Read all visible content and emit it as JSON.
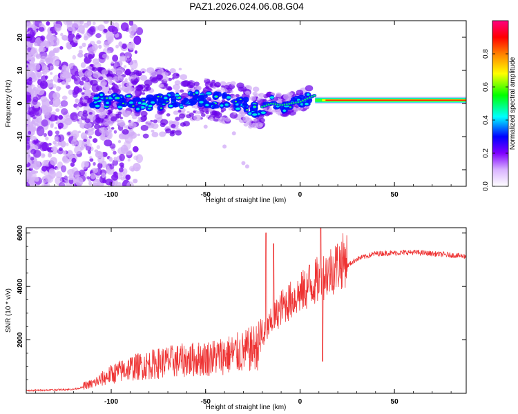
{
  "chart_data": [
    {
      "type": "heatmap",
      "title": "PAZ1.2026.024.06.08.G04",
      "xlabel": "Height of straight line (km)",
      "ylabel": "Frequency (Hz)",
      "xlim": [
        -145,
        88
      ],
      "ylim": [
        -25,
        25
      ],
      "xticks": [
        -100,
        -50,
        0,
        50
      ],
      "yticks": [
        20,
        10,
        0,
        -10,
        -20
      ],
      "colorbar": {
        "label": "Normalized spectral amplitude",
        "range": [
          0,
          1
        ],
        "ticks": [
          "0.0",
          "0.2",
          "0.4",
          "0.6",
          "0.8"
        ],
        "colors": [
          "#ffffff",
          "#a000ff",
          "#0000ff",
          "#00ffff",
          "#00ff00",
          "#ffff00",
          "#ff8000",
          "#ff0000",
          "#ff0080"
        ]
      },
      "ridge": [
        {
          "x": -110,
          "f": 1.0
        },
        {
          "x": -100,
          "f": 1.0
        },
        {
          "x": -90,
          "f": 0.5
        },
        {
          "x": -80,
          "f": 0.0
        },
        {
          "x": -70,
          "f": 0.5
        },
        {
          "x": -60,
          "f": 1.0
        },
        {
          "x": -50,
          "f": 1.5
        },
        {
          "x": -40,
          "f": 0.5
        },
        {
          "x": -30,
          "f": 0.0
        },
        {
          "x": -25,
          "f": -1.5
        },
        {
          "x": -20,
          "f": -1.0
        },
        {
          "x": -15,
          "f": 0.0
        },
        {
          "x": -10,
          "f": -0.5
        },
        {
          "x": 0,
          "f": 0.5
        },
        {
          "x": 8,
          "f": 2.5
        },
        {
          "x": 10,
          "f": 1.0
        },
        {
          "x": 88,
          "f": 1.0
        }
      ]
    },
    {
      "type": "line",
      "xlabel": "Height of straight line (km)",
      "ylabel": "SNR (10 * v/v)",
      "xlim": [
        -145,
        88
      ],
      "ylim": [
        0,
        6200
      ],
      "xticks": [
        -100,
        -50,
        0,
        50
      ],
      "yticks": [
        2000,
        4000,
        6000
      ],
      "color": "#ee3333",
      "trend": [
        {
          "x": -145,
          "y": 100
        },
        {
          "x": -120,
          "y": 150
        },
        {
          "x": -110,
          "y": 300
        },
        {
          "x": -100,
          "y": 600
        },
        {
          "x": -90,
          "y": 800
        },
        {
          "x": -80,
          "y": 900
        },
        {
          "x": -70,
          "y": 1000
        },
        {
          "x": -60,
          "y": 1050
        },
        {
          "x": -50,
          "y": 1100
        },
        {
          "x": -40,
          "y": 1200
        },
        {
          "x": -30,
          "y": 1300
        },
        {
          "x": -22,
          "y": 1500
        },
        {
          "x": -18,
          "y": 2200
        },
        {
          "x": -10,
          "y": 3000
        },
        {
          "x": 0,
          "y": 3500
        },
        {
          "x": 10,
          "y": 4000
        },
        {
          "x": 20,
          "y": 4500
        },
        {
          "x": 30,
          "y": 5000
        },
        {
          "x": 40,
          "y": 5200
        },
        {
          "x": 60,
          "y": 5250
        },
        {
          "x": 88,
          "y": 5100
        }
      ],
      "spikes": [
        {
          "x": -18,
          "y": 6000
        },
        {
          "x": -14,
          "y": 5600
        },
        {
          "x": 11,
          "y": 6200
        },
        {
          "x": 12,
          "y": 1200
        },
        {
          "x": 5,
          "y": 4800
        }
      ]
    }
  ]
}
